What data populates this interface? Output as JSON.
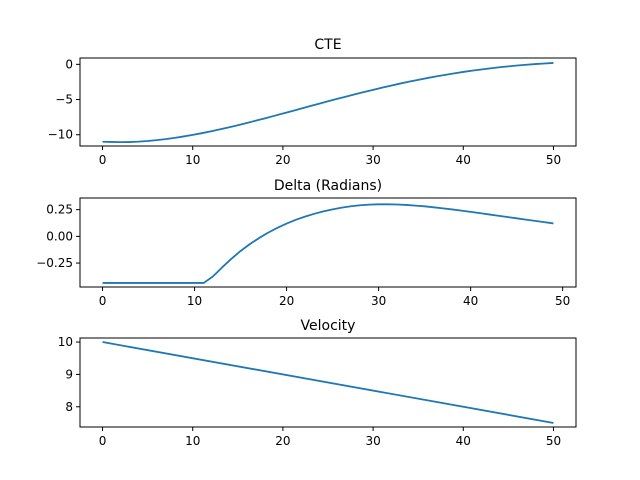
{
  "figure": {
    "background": "#ffffff",
    "line_color": "#1f77b4"
  },
  "chart_data": [
    {
      "type": "line",
      "title": "CTE",
      "xlabel": "",
      "ylabel": "",
      "xlim": [
        -2.5,
        52.5
      ],
      "ylim": [
        -11.6,
        0.9
      ],
      "xticks": [
        0,
        10,
        20,
        30,
        40,
        50
      ],
      "yticks": [
        0,
        -5,
        -10
      ],
      "ytick_labels": [
        "0",
        "−5",
        "−10"
      ],
      "grid": false,
      "series": [
        {
          "color": "#1f77b4",
          "x": [
            0,
            1,
            2,
            3,
            4,
            5,
            6,
            7,
            8,
            9,
            10,
            11,
            12,
            13,
            14,
            15,
            16,
            17,
            18,
            19,
            20,
            21,
            22,
            23,
            24,
            25,
            26,
            27,
            28,
            29,
            30,
            31,
            32,
            33,
            34,
            35,
            36,
            37,
            38,
            39,
            40,
            41,
            42,
            43,
            44,
            45,
            46,
            47,
            48,
            49,
            50
          ],
          "y": [
            -11.0,
            -11.02,
            -11.05,
            -11.04,
            -10.98,
            -10.89,
            -10.77,
            -10.62,
            -10.44,
            -10.24,
            -10.02,
            -9.78,
            -9.52,
            -9.24,
            -8.95,
            -8.65,
            -8.33,
            -8.0,
            -7.67,
            -7.33,
            -6.98,
            -6.64,
            -6.29,
            -5.94,
            -5.6,
            -5.25,
            -4.91,
            -4.58,
            -4.25,
            -3.93,
            -3.62,
            -3.31,
            -3.02,
            -2.73,
            -2.46,
            -2.2,
            -1.95,
            -1.71,
            -1.49,
            -1.28,
            -1.08,
            -0.9,
            -0.73,
            -0.57,
            -0.42,
            -0.29,
            -0.17,
            -0.06,
            0.04,
            0.12,
            0.2
          ]
        }
      ]
    },
    {
      "type": "line",
      "title": "Delta (Radians)",
      "xlabel": "",
      "ylabel": "",
      "xlim": [
        -2.45,
        51.45
      ],
      "ylim": [
        -0.474,
        0.359
      ],
      "xticks": [
        0,
        10,
        20,
        30,
        40,
        50
      ],
      "yticks": [
        0.25,
        0.0,
        -0.25
      ],
      "ytick_labels": [
        "0.25",
        "0.00",
        "−0.25"
      ],
      "grid": false,
      "series": [
        {
          "color": "#1f77b4",
          "x": [
            0,
            1,
            2,
            3,
            4,
            5,
            6,
            7,
            8,
            9,
            10,
            11,
            12,
            13,
            14,
            15,
            16,
            17,
            18,
            19,
            20,
            21,
            22,
            23,
            24,
            25,
            26,
            27,
            28,
            29,
            30,
            31,
            32,
            33,
            34,
            35,
            36,
            37,
            38,
            39,
            40,
            41,
            42,
            43,
            44,
            45,
            46,
            47,
            48,
            49
          ],
          "y": [
            -0.436,
            -0.436,
            -0.436,
            -0.436,
            -0.436,
            -0.436,
            -0.436,
            -0.436,
            -0.436,
            -0.436,
            -0.436,
            -0.436,
            -0.375,
            -0.29,
            -0.21,
            -0.137,
            -0.073,
            -0.016,
            0.035,
            0.08,
            0.12,
            0.155,
            0.185,
            0.211,
            0.234,
            0.253,
            0.269,
            0.282,
            0.291,
            0.297,
            0.3,
            0.3,
            0.298,
            0.294,
            0.288,
            0.281,
            0.272,
            0.262,
            0.252,
            0.241,
            0.229,
            0.217,
            0.205,
            0.193,
            0.181,
            0.169,
            0.157,
            0.145,
            0.133,
            0.121
          ]
        }
      ]
    },
    {
      "type": "line",
      "title": "Velocity",
      "xlabel": "",
      "ylabel": "",
      "xlim": [
        -2.5,
        52.5
      ],
      "ylim": [
        7.375,
        10.125
      ],
      "xticks": [
        0,
        10,
        20,
        30,
        40,
        50
      ],
      "yticks": [
        10,
        9,
        8
      ],
      "ytick_labels": [
        "10",
        "9",
        "8"
      ],
      "grid": false,
      "series": [
        {
          "color": "#1f77b4",
          "x": [
            0,
            50
          ],
          "y": [
            10.0,
            7.5
          ]
        }
      ]
    }
  ]
}
